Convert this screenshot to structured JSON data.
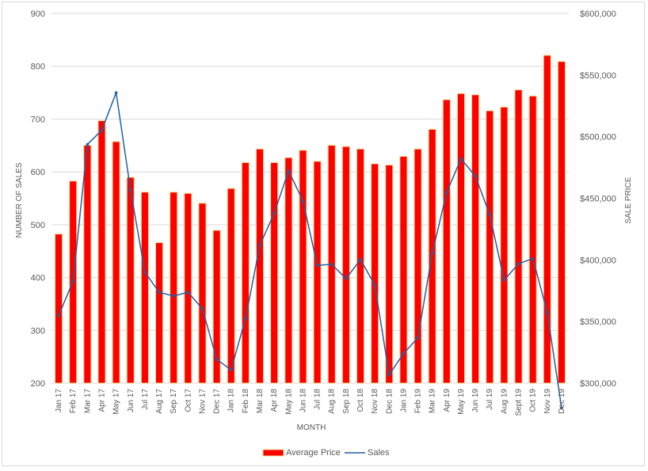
{
  "chart_data": {
    "type": "bar",
    "xlabel": "MONTH",
    "ylabel_left": "NUMBER OF SALES",
    "ylabel_right": "SALE PRICE",
    "categories": [
      "Jan 17",
      "Feb 17",
      "Mar 17",
      "Apr 17",
      "May 17",
      "Jun 17",
      "Jul 17",
      "Aug 17",
      "Sep 17",
      "Oct 17",
      "Nov 17",
      "Dec 17",
      "Jan 18",
      "Feb 18",
      "Mar 18",
      "Apr 18",
      "May 18",
      "Jun 18",
      "Jul 18",
      "Aug 18",
      "Sep 18",
      "Oct 18",
      "Nov 18",
      "Dec 18",
      "Jan 19",
      "Feb 19",
      "Mar 19",
      "Apr 19",
      "May 19",
      "Jun 19",
      "Jul 19",
      "Aug 19",
      "Sept 19",
      "Oct 19",
      "Nov 19",
      "Dec 19"
    ],
    "left_axis": {
      "ylim": [
        200,
        900
      ],
      "ticks": [
        "200",
        "300",
        "400",
        "500",
        "600",
        "700",
        "800",
        "900"
      ],
      "tick_values": [
        200,
        300,
        400,
        500,
        600,
        700,
        800,
        900
      ]
    },
    "right_axis": {
      "ylim": [
        300000,
        600000
      ],
      "ticks": [
        "$300,000",
        "$350,000",
        "$400,000",
        "$450,000",
        "$500,000",
        "$550,000",
        "$600,000"
      ],
      "tick_values": [
        300000,
        350000,
        400000,
        450000,
        500000,
        550000,
        600000
      ]
    },
    "grid": true,
    "legend_position": "bottom",
    "series": [
      {
        "name": "Average Price",
        "kind": "bar",
        "axis": "right",
        "color": "#ff0000",
        "edge_color": "#f0d98c",
        "values": [
          421000,
          464000,
          493000,
          513000,
          496000,
          467000,
          455000,
          414000,
          455000,
          454000,
          446000,
          424000,
          458000,
          479000,
          490000,
          479000,
          483000,
          489000,
          480000,
          493000,
          492000,
          490000,
          478000,
          477000,
          484000,
          490000,
          506000,
          530000,
          535000,
          534000,
          521000,
          524000,
          538000,
          533000,
          566000,
          561000
        ]
      },
      {
        "name": "Sales",
        "kind": "line",
        "axis": "left",
        "color": "#1f5fa6",
        "values": [
          328,
          393,
          652,
          679,
          750,
          566,
          410,
          372,
          365,
          372,
          341,
          245,
          225,
          322,
          461,
          522,
          602,
          545,
          423,
          425,
          398,
          434,
          386,
          216,
          256,
          286,
          446,
          561,
          625,
          592,
          519,
          395,
          426,
          436,
          334,
          153
        ]
      }
    ]
  }
}
